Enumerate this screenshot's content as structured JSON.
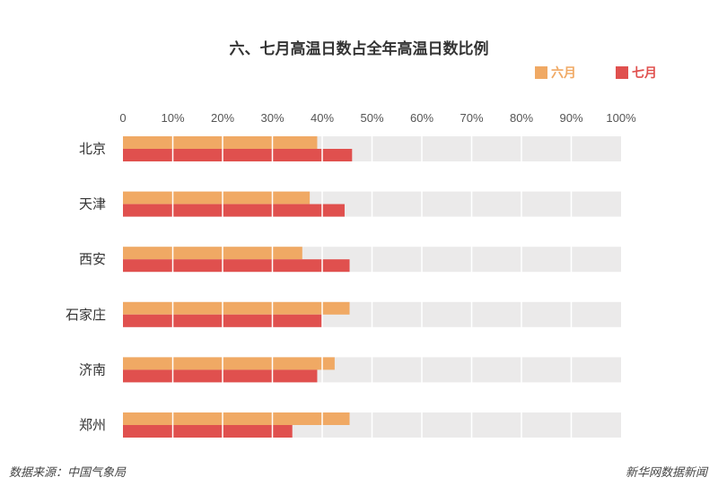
{
  "chart_data": {
    "type": "bar",
    "orientation": "horizontal",
    "title": "六、七月高温日数占全年高温日数比例",
    "categories": [
      "北京",
      "天津",
      "西安",
      "石家庄",
      "济南",
      "郑州"
    ],
    "series": [
      {
        "name": "六月",
        "color": "#f0a964",
        "values": [
          39,
          37.5,
          36,
          45.5,
          42.5,
          45.5
        ]
      },
      {
        "name": "七月",
        "color": "#e0504e",
        "values": [
          46,
          44.5,
          45.5,
          40,
          39,
          34
        ]
      }
    ],
    "xlim": [
      0,
      100
    ],
    "xticks": [
      "0",
      "10%",
      "20%",
      "30%",
      "40%",
      "50%",
      "60%",
      "70%",
      "80%",
      "90%",
      "100%"
    ],
    "track_color": "#ebeaea",
    "grid": true,
    "legend_position": "top-right"
  },
  "footer": {
    "source": "数据来源：中国气象局",
    "credit": "新华网数据新闻"
  }
}
